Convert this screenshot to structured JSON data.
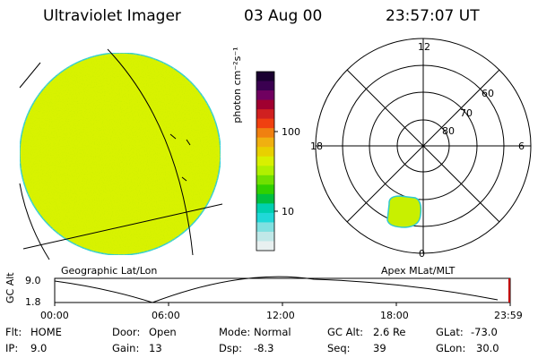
{
  "header": {
    "instrument": "Ultraviolet Imager",
    "date": "03 Aug 00",
    "time": "23:57:07 UT"
  },
  "colorbar": {
    "label": "photon cm⁻²s⁻¹",
    "ticks": [
      "100",
      "10"
    ],
    "colors": [
      "#1a0030",
      "#3a0050",
      "#700060",
      "#a00030",
      "#d02020",
      "#f04010",
      "#f08010",
      "#f0b010",
      "#e8d000",
      "#d8f000",
      "#b0f000",
      "#70e000",
      "#30d000",
      "#00c040",
      "#00d0b0",
      "#20d8d8",
      "#80e0e0",
      "#c0e8e8",
      "#e8f0f0"
    ]
  },
  "left_panel": {
    "caption": "Geographic Lat/Lon",
    "fill_color": "#d8f200",
    "edge_color": "#30d0d0"
  },
  "right_panel": {
    "caption": "Apex MLat/MLT",
    "clock_labels": {
      "top": "12",
      "left": "18",
      "right": "6",
      "bottom": "0"
    },
    "lat_labels": [
      "60",
      "70",
      "80"
    ],
    "blob_color": "#c8f000"
  },
  "altitude_plot": {
    "ylabel": "GC Alt",
    "yticks": [
      "9.0",
      "1.8"
    ],
    "xticks": [
      "00:00",
      "06:00",
      "12:00",
      "18:00",
      "23:59"
    ]
  },
  "info_rows": [
    [
      {
        "label": "Flt:",
        "value": "HOME"
      },
      {
        "label": "Door:",
        "value": "Open"
      },
      {
        "label": "Mode:",
        "value": "Normal"
      },
      {
        "label": "GC Alt:",
        "value": "2.6 Re"
      },
      {
        "label": "GLat:",
        "value": "-73.0"
      }
    ],
    [
      {
        "label": "IP:",
        "value": "9.0"
      },
      {
        "label": "Gain:",
        "value": "13"
      },
      {
        "label": "Dsp:",
        "value": "-8.3"
      },
      {
        "label": "Seq:",
        "value": "39"
      },
      {
        "label": "GLon:",
        "value": "30.0"
      }
    ]
  ]
}
